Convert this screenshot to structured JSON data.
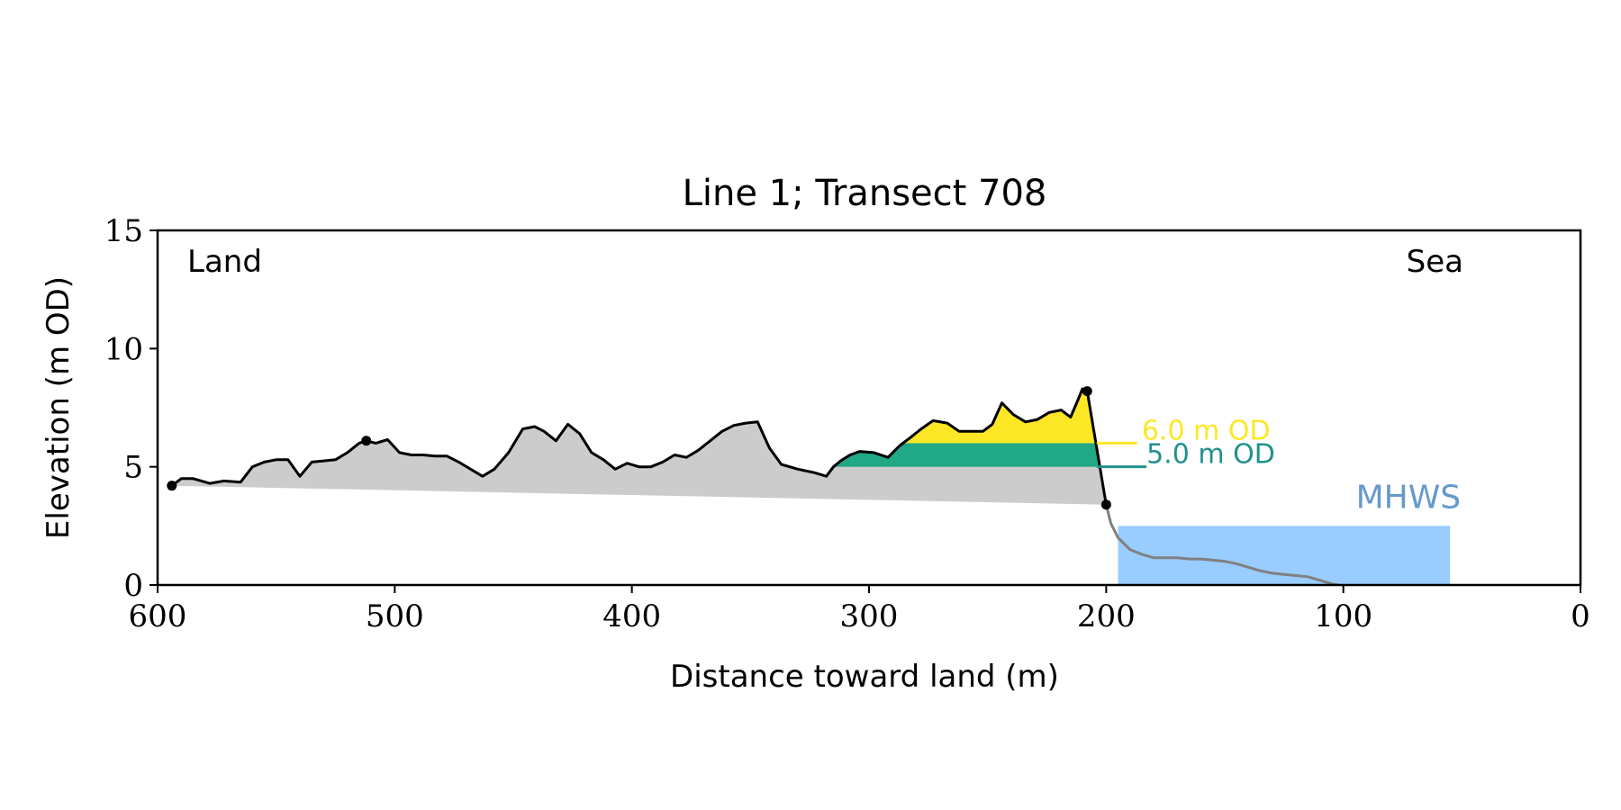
{
  "chart_data": {
    "type": "area",
    "title": "Line 1; Transect 708",
    "xlabel": "Distance toward land (m)",
    "ylabel": "Elevation (m OD)",
    "xlim": [
      600,
      0
    ],
    "ylim": [
      0,
      15
    ],
    "x_ticks": [
      600,
      500,
      400,
      300,
      200,
      100,
      0
    ],
    "y_ticks": [
      0,
      5,
      10,
      15
    ],
    "grid": false,
    "corner_labels": {
      "left": "Land",
      "right": "Sea"
    },
    "profile": {
      "x": [
        594,
        590,
        585,
        578,
        572,
        565,
        560,
        555,
        550,
        545,
        540,
        535,
        530,
        525,
        520,
        515,
        512,
        508,
        503,
        498,
        493,
        488,
        483,
        478,
        473,
        468,
        463,
        458,
        452,
        446,
        441,
        437,
        432,
        427,
        422,
        417,
        412,
        407,
        402,
        397,
        392,
        387,
        382,
        377,
        372,
        367,
        362,
        357,
        352,
        347,
        342,
        337,
        330,
        323,
        318,
        315,
        312,
        308,
        304,
        298,
        292,
        287,
        283,
        278,
        273,
        267,
        262,
        257,
        252,
        248,
        244,
        239,
        234,
        229,
        224,
        219,
        215,
        212,
        210,
        208
      ],
      "y": [
        4.2,
        4.5,
        4.5,
        4.3,
        4.4,
        4.35,
        5.0,
        5.2,
        5.3,
        5.3,
        4.6,
        5.2,
        5.25,
        5.3,
        5.6,
        6.0,
        6.1,
        6.0,
        6.15,
        5.6,
        5.5,
        5.5,
        5.45,
        5.45,
        5.2,
        4.9,
        4.6,
        4.9,
        5.6,
        6.6,
        6.7,
        6.5,
        6.1,
        6.8,
        6.4,
        5.6,
        5.3,
        4.9,
        5.15,
        5.0,
        5.0,
        5.2,
        5.5,
        5.4,
        5.7,
        6.1,
        6.5,
        6.75,
        6.85,
        6.9,
        5.8,
        5.1,
        4.9,
        4.75,
        4.6,
        5.0,
        5.25,
        5.5,
        5.65,
        5.6,
        5.4,
        5.9,
        6.2,
        6.6,
        6.95,
        6.85,
        6.5,
        6.5,
        6.5,
        6.8,
        7.7,
        7.2,
        6.9,
        7.0,
        7.3,
        7.4,
        7.1,
        7.8,
        8.3,
        8.2
      ]
    },
    "cliff": {
      "top": [
        208,
        8.2
      ],
      "toe": [
        200,
        3.4
      ]
    },
    "base_line": {
      "start": [
        594,
        4.2
      ],
      "end": [
        200,
        3.4
      ]
    },
    "foreshore": {
      "x": [
        200,
        198,
        195,
        190,
        185,
        180,
        175,
        170,
        165,
        160,
        155,
        150,
        145,
        140,
        135,
        130,
        125,
        120,
        115,
        110,
        105,
        102
      ],
      "y": [
        3.4,
        2.6,
        2.0,
        1.5,
        1.3,
        1.15,
        1.15,
        1.15,
        1.1,
        1.1,
        1.05,
        1.0,
        0.9,
        0.75,
        0.6,
        0.5,
        0.45,
        0.4,
        0.35,
        0.2,
        0.05,
        0.0
      ]
    },
    "markers": [
      [
        594,
        4.2
      ],
      [
        512,
        6.1
      ],
      [
        208,
        8.2
      ],
      [
        200,
        3.4
      ]
    ],
    "thresholds": [
      {
        "label": "6.0 m OD",
        "value": 6.0,
        "color": "#fde725"
      },
      {
        "label": "5.0 m OD",
        "value": 5.0,
        "color": "#21918c"
      }
    ],
    "mhws": {
      "label": "MHWS",
      "value": 2.5,
      "x_range": [
        195,
        55
      ],
      "color": "#99ccff",
      "label_color": "#6699cc"
    },
    "colors": {
      "profile_fill": "#cccccc",
      "profile_line": "#000000",
      "foreshore_line": "#808080",
      "band_5_6": "#21a884",
      "band_above_6": "#fde725"
    }
  }
}
